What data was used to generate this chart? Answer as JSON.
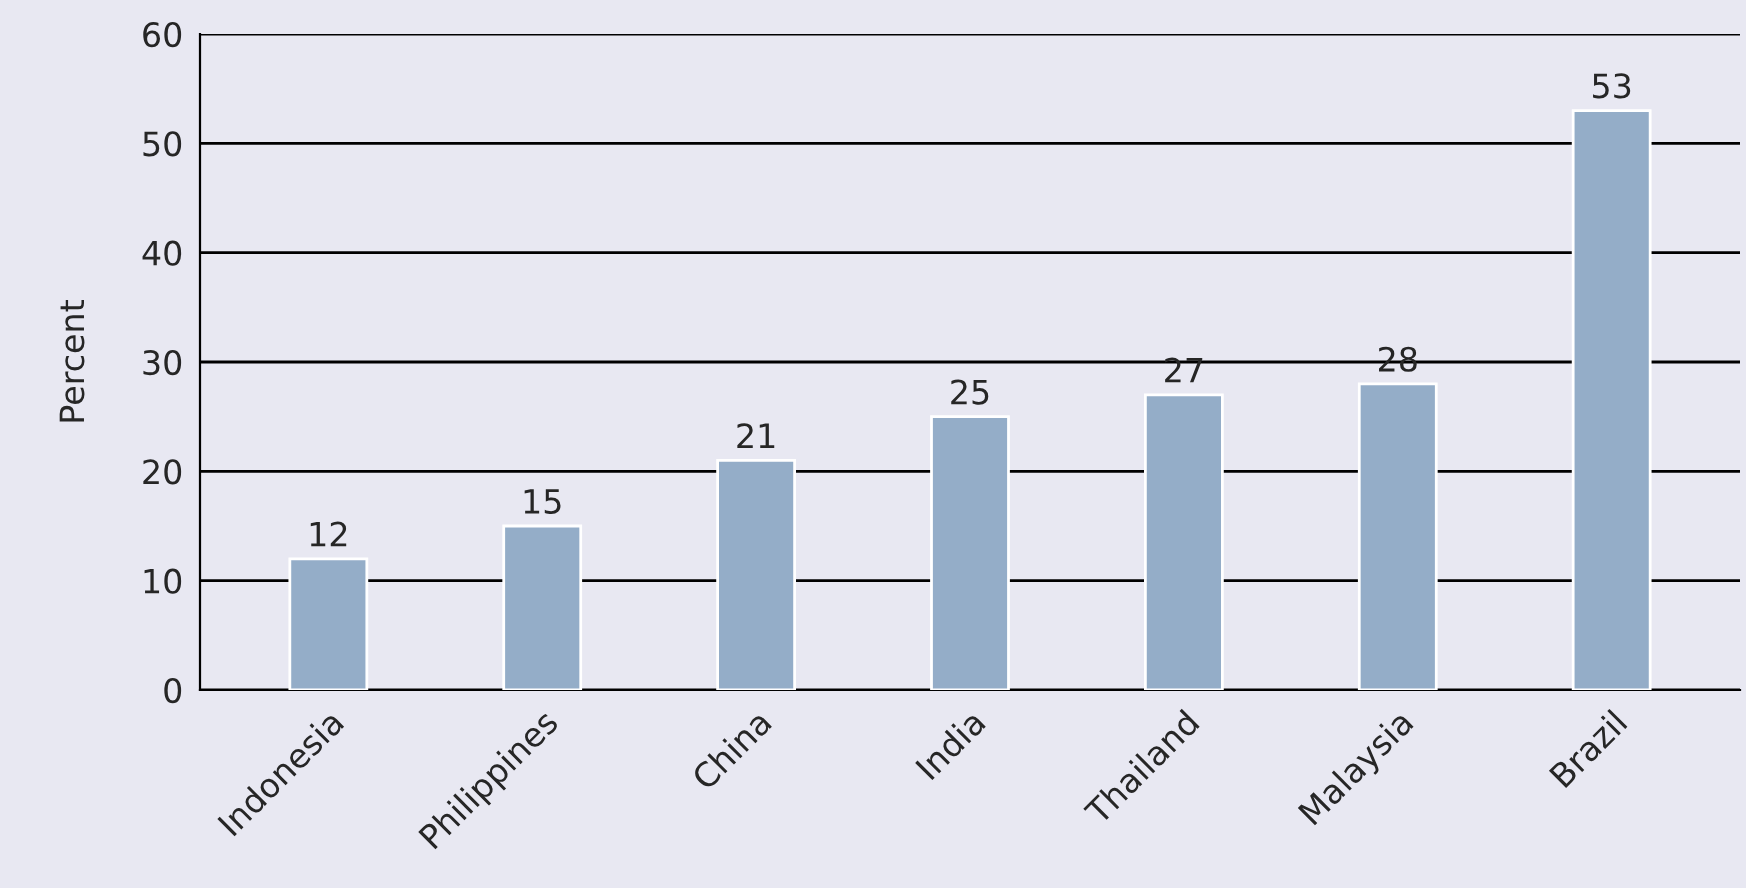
{
  "chart_data": {
    "type": "bar",
    "ylabel": "Percent",
    "categories": [
      "Indonesia",
      "Philippines",
      "China",
      "India",
      "Thailand",
      "Malaysia",
      "Brazil"
    ],
    "values": [
      12,
      15,
      21,
      25,
      27,
      28,
      53
    ],
    "color": "#94adc8",
    "ylim": [
      0,
      60
    ],
    "yticks": [
      0,
      10,
      20,
      30,
      40,
      50,
      60
    ],
    "grid": "y",
    "data_labels": true
  }
}
